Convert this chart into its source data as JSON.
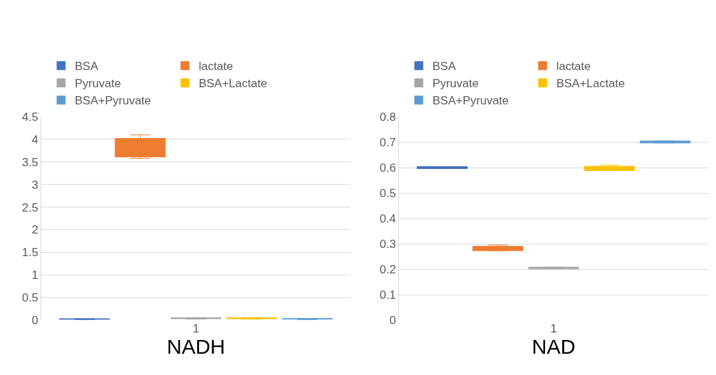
{
  "chart_data": [
    {
      "type": "box",
      "xlabel": "NADH",
      "categories": [
        "1"
      ],
      "ylim": [
        0,
        4.5
      ],
      "yticks": [
        0,
        0.5,
        1,
        1.5,
        2,
        2.5,
        3,
        3.5,
        4,
        4.5
      ],
      "grid": "y",
      "legend": "top",
      "series": [
        {
          "name": "BSA",
          "color": "#4472c4",
          "boxes": [
            {
              "low": 0.01,
              "q1": 0.02,
              "median": 0.02,
              "q3": 0.03,
              "high": 0.03,
              "mean": 0.02
            }
          ]
        },
        {
          "name": "lactate",
          "color": "#ed7d31",
          "boxes": [
            {
              "low": 3.58,
              "q1": 3.61,
              "median": 3.75,
              "q3": 4.02,
              "high": 4.1,
              "mean": 3.7
            }
          ]
        },
        {
          "name": "Pyruvate",
          "color": "#a5a5a5",
          "boxes": [
            {
              "low": 0.02,
              "q1": 0.03,
              "median": 0.04,
              "q3": 0.05,
              "high": 0.05,
              "mean": 0.04
            }
          ]
        },
        {
          "name": "BSA+Lactate",
          "color": "#ffc000",
          "boxes": [
            {
              "low": 0.02,
              "q1": 0.03,
              "median": 0.04,
              "q3": 0.05,
              "high": 0.05,
              "mean": 0.04
            }
          ]
        },
        {
          "name": "BSA+Pyruvate",
          "color": "#5b9bd5",
          "boxes": [
            {
              "low": 0.01,
              "q1": 0.02,
              "median": 0.03,
              "q3": 0.03,
              "high": 0.03,
              "mean": 0.03
            }
          ]
        }
      ]
    },
    {
      "type": "box",
      "xlabel": "NAD",
      "categories": [
        "1"
      ],
      "ylim": [
        0,
        0.8
      ],
      "yticks": [
        0,
        0.1,
        0.2,
        0.3,
        0.4,
        0.5,
        0.6,
        0.7,
        0.8
      ],
      "grid": "y",
      "legend": "top",
      "series": [
        {
          "name": "BSA",
          "color": "#4472c4",
          "boxes": [
            {
              "low": 0.596,
              "q1": 0.596,
              "median": 0.6,
              "q3": 0.604,
              "high": 0.604,
              "mean": 0.6
            }
          ]
        },
        {
          "name": "lactate",
          "color": "#ed7d31",
          "boxes": [
            {
              "low": 0.273,
              "q1": 0.273,
              "median": 0.28,
              "q3": 0.29,
              "high": 0.295,
              "mean": 0.28
            }
          ]
        },
        {
          "name": "Pyruvate",
          "color": "#a5a5a5",
          "boxes": [
            {
              "low": 0.202,
              "q1": 0.202,
              "median": 0.205,
              "q3": 0.208,
              "high": 0.208,
              "mean": 0.205
            }
          ]
        },
        {
          "name": "BSA+Lactate",
          "color": "#ffc000",
          "boxes": [
            {
              "low": 0.588,
              "q1": 0.588,
              "median": 0.6,
              "q3": 0.605,
              "high": 0.61,
              "mean": 0.597
            }
          ]
        },
        {
          "name": "BSA+Pyruvate",
          "color": "#5b9bd5",
          "boxes": [
            {
              "low": 0.697,
              "q1": 0.697,
              "median": 0.7,
              "q3": 0.705,
              "high": 0.705,
              "mean": 0.7
            }
          ]
        }
      ]
    }
  ]
}
